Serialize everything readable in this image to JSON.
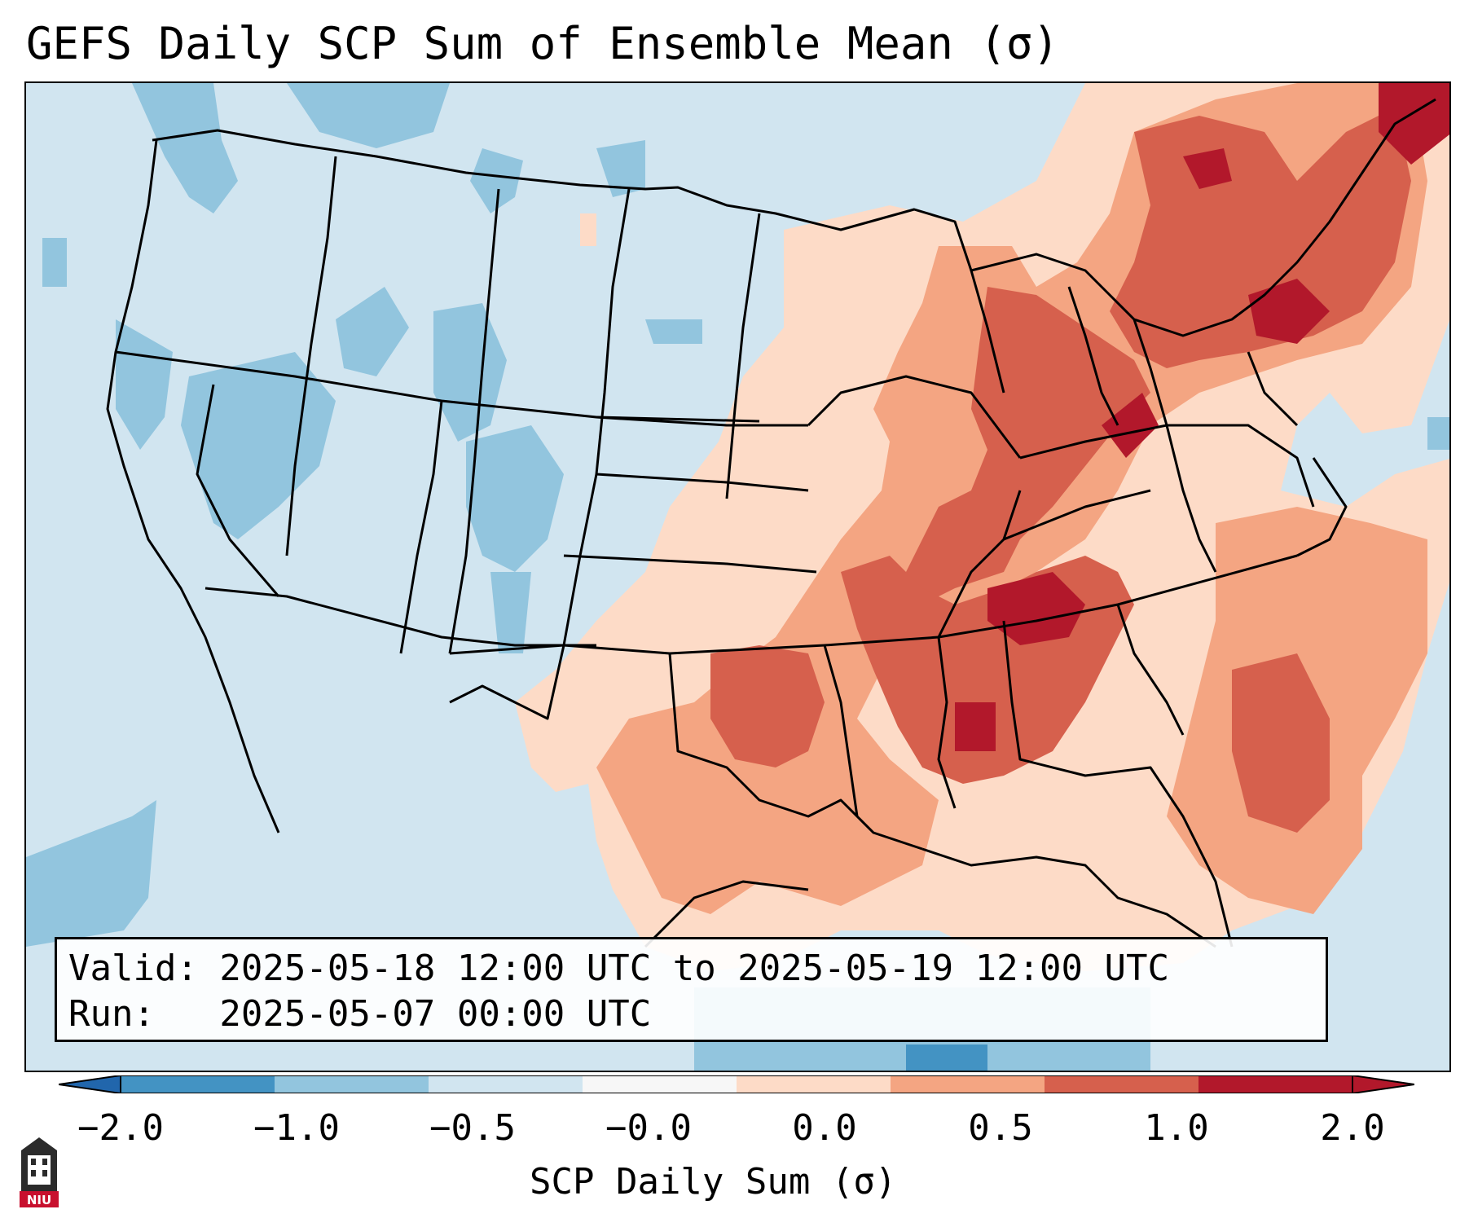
{
  "title": "GEFS Daily SCP Sum of Ensemble Mean (σ)",
  "info": {
    "valid_line": "Valid: 2025-05-18 12:00 UTC to 2025-05-19 12:00 UTC",
    "run_line": "Run:   2025-05-07 00:00 UTC"
  },
  "colorbar": {
    "label": "SCP Daily Sum (σ)",
    "ticks": [
      "−2.0",
      "−1.0",
      "−0.5",
      "−0.0",
      "0.0",
      "0.5",
      "1.0",
      "2.0"
    ],
    "colors": [
      "#4393c3",
      "#92c5de",
      "#d1e5f0",
      "#f7f7f7",
      "#fddbc7",
      "#f4a582",
      "#d6604d",
      "#b2182b"
    ],
    "under_color": "#2166ac",
    "over_color": "#b2182b"
  },
  "map": {
    "background_color": "#d1e5f0",
    "region": "CONUS"
  },
  "logo": {
    "text": "NIU"
  }
}
